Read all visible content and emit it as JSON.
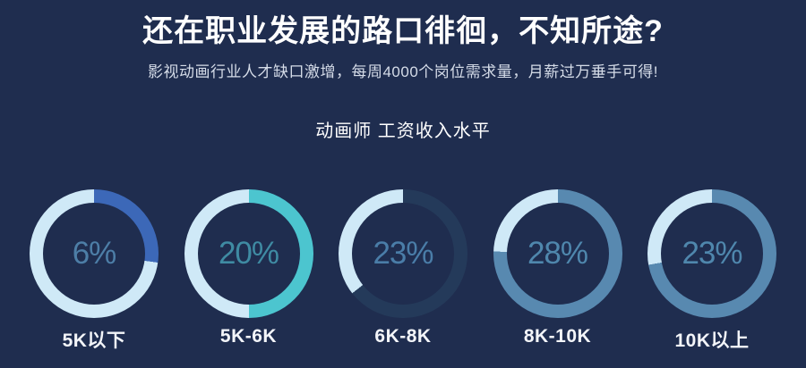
{
  "banner": {
    "title": "还在职业发展的路口徘徊，不知所途?",
    "subtitle": "影视动画行业人才缺口激增，每周4000个岗位需求量，月薪过万垂手可得!"
  },
  "chart_data": {
    "type": "pie",
    "variant": "donut-ring-row",
    "title": "动画师 工资收入水平",
    "categories": [
      "5K以下",
      "5K-6K",
      "6K-8K",
      "8K-10K",
      "10K以上"
    ],
    "values": [
      6,
      20,
      23,
      28,
      23
    ],
    "unit": "%",
    "legend_position": "none",
    "donuts": [
      {
        "label": "5K以下",
        "value": 6,
        "value_label": "6%",
        "value_color": "#4d7ea7",
        "segments": [
          {
            "name": "arc",
            "color": "#3c68b8",
            "start": 0,
            "end": 98
          },
          {
            "name": "rest",
            "color": "#cfe9f7",
            "start": 98,
            "end": 360
          }
        ]
      },
      {
        "label": "5K-6K",
        "value": 20,
        "value_label": "20%",
        "value_color": "#3f8ba3",
        "segments": [
          {
            "name": "arc",
            "color": "#4cc5cf",
            "start": 0,
            "end": 180
          },
          {
            "name": "rest",
            "color": "#cfe9f7",
            "start": 180,
            "end": 360
          }
        ]
      },
      {
        "label": "6K-8K",
        "value": 23,
        "value_label": "23%",
        "value_color": "#4a7da8",
        "segments": [
          {
            "name": "arc",
            "color": "#243a5a",
            "start": 0,
            "end": 232
          },
          {
            "name": "rest",
            "color": "#cfe9f7",
            "start": 232,
            "end": 360
          }
        ]
      },
      {
        "label": "8K-10K",
        "value": 28,
        "value_label": "28%",
        "value_color": "#4f87ad",
        "segments": [
          {
            "name": "arc",
            "color": "#5889b0",
            "start": 0,
            "end": 272
          },
          {
            "name": "rest",
            "color": "#cfe9f7",
            "start": 272,
            "end": 360
          }
        ]
      },
      {
        "label": "10K以上",
        "value": 23,
        "value_label": "23%",
        "value_color": "#4f87ad",
        "segments": [
          {
            "name": "arc",
            "color": "#5889b0",
            "start": 0,
            "end": 260
          },
          {
            "name": "rest",
            "color": "#cfe9f7",
            "start": 260,
            "end": 360
          }
        ]
      }
    ]
  },
  "colors": {
    "background": "#1f2d4f",
    "title_text": "#ffffff",
    "subtitle_text": "#d5dce8",
    "chart_title_text": "#ffffff",
    "label_text": "#f3f5f9",
    "ring_light": "#cfe9f7",
    "ring_blue": "#3c68b8",
    "ring_teal": "#4cc5cf",
    "ring_dark_navy": "#243a5a",
    "ring_steel_blue": "#5889b0"
  }
}
